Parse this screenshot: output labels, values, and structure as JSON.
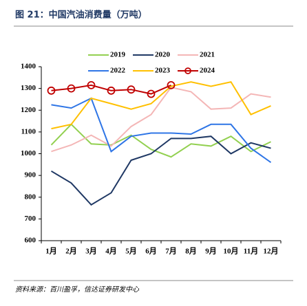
{
  "chart_data": {
    "type": "line",
    "title": "图 21：中国汽油消费量（万吨）",
    "source": "资料来源：百川盈孚，信达证券研发中心",
    "categories": [
      "1月",
      "2月",
      "3月",
      "4月",
      "5月",
      "6月",
      "7月",
      "8月",
      "9月",
      "10月",
      "11月",
      "12月"
    ],
    "series": [
      {
        "name": "2019",
        "color": "#92d050",
        "values": [
          1040,
          1135,
          1045,
          1040,
          1085,
          1020,
          985,
          1045,
          1035,
          1080,
          1010,
          1055
        ]
      },
      {
        "name": "2020",
        "color": "#1f3864",
        "values": [
          920,
          865,
          765,
          820,
          970,
          1000,
          1070,
          1070,
          1080,
          1000,
          1050,
          1025
        ]
      },
      {
        "name": "2021",
        "color": "#f4b6b6",
        "values": [
          1010,
          1040,
          1085,
          1035,
          1125,
          1180,
          1305,
          1285,
          1205,
          1210,
          1275,
          1260
        ]
      },
      {
        "name": "2022",
        "color": "#2e75e6",
        "values": [
          1225,
          1210,
          1255,
          1010,
          1080,
          1095,
          1095,
          1090,
          1135,
          1135,
          1025,
          960
        ]
      },
      {
        "name": "2023",
        "color": "#ffc000",
        "values": [
          1115,
          1135,
          1255,
          1230,
          1205,
          1230,
          1310,
          1330,
          1310,
          1330,
          1180,
          1220
        ]
      },
      {
        "name": "2024",
        "color": "#c00000",
        "marker": "circle",
        "values": [
          1290,
          1300,
          1315,
          1290,
          1295,
          1275,
          1315,
          null,
          null,
          null,
          null,
          null
        ]
      }
    ],
    "ylim": [
      600,
      1400
    ],
    "yticks": [
      600,
      700,
      800,
      900,
      1000,
      1100,
      1200,
      1300,
      1400
    ],
    "grid": false
  }
}
